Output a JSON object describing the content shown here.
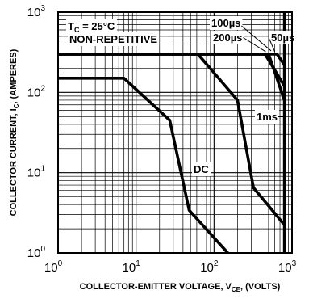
{
  "chart_data": {
    "type": "line",
    "xlabel": "COLLECTOR-EMITTER VOLTAGE, V",
    "xlabel_sub": "CE",
    "xlabel_tail": ", (VOLTS)",
    "ylabel": "COLLECTOR CURRENT, I",
    "ylabel_sub": "C",
    "ylabel_tail": ", (AMPERES)",
    "xscale": "log",
    "yscale": "log",
    "xlim": [
      1,
      1000
    ],
    "ylim": [
      1,
      1000
    ],
    "grid": true,
    "x_ticks": [
      {
        "base": "10",
        "exp": "0",
        "value": 1
      },
      {
        "base": "10",
        "exp": "1",
        "value": 10
      },
      {
        "base": "10",
        "exp": "2",
        "value": 100
      },
      {
        "base": "10",
        "exp": "3",
        "value": 1000
      }
    ],
    "y_ticks": [
      {
        "base": "10",
        "exp": "0",
        "value": 1
      },
      {
        "base": "10",
        "exp": "1",
        "value": 10
      },
      {
        "base": "10",
        "exp": "2",
        "value": 100
      },
      {
        "base": "10",
        "exp": "3",
        "value": 1000
      }
    ],
    "conditions": [
      {
        "label": "T",
        "sub": "C",
        "rest": " = 25°C"
      },
      {
        "label": "NON-REPETITIVE"
      }
    ],
    "series": [
      {
        "name": "DC",
        "points": [
          [
            1,
            150
          ],
          [
            7,
            150
          ],
          [
            27,
            45
          ],
          [
            48,
            3.4
          ],
          [
            150,
            1
          ]
        ]
      },
      {
        "name": "1ms",
        "points": [
          [
            1,
            300
          ],
          [
            62,
            300
          ],
          [
            200,
            80
          ],
          [
            320,
            6.5
          ],
          [
            780,
            2.3
          ]
        ]
      },
      {
        "name": "100µs",
        "points": [
          [
            1,
            300
          ],
          [
            500,
            300
          ],
          [
            800,
            80
          ]
        ]
      },
      {
        "name": "200µs",
        "points": [
          [
            1,
            300
          ],
          [
            450,
            300
          ],
          [
            800,
            120
          ]
        ]
      },
      {
        "name": "50µs",
        "points": [
          [
            1,
            300
          ],
          [
            640,
            300
          ],
          [
            800,
            220
          ]
        ]
      },
      {
        "name": "",
        "points": [
          [
            800,
            1000
          ],
          [
            800,
            1
          ]
        ]
      }
    ]
  }
}
